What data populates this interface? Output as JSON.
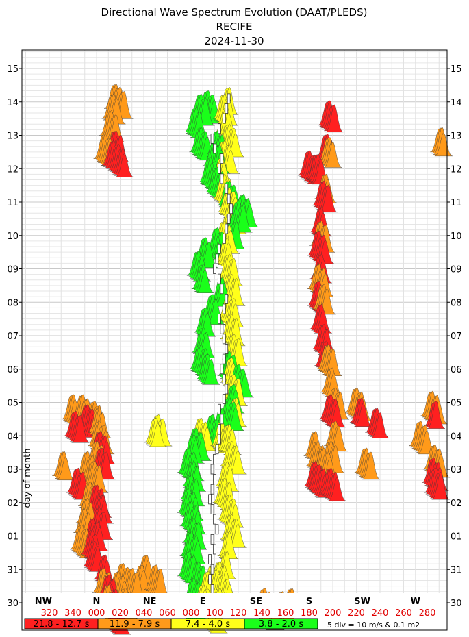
{
  "chart_data": {
    "type": "scatter",
    "title": "Directional Wave Spectrum Evolution (DAAT/PLEDS)",
    "subtitle_location": "RECIFE",
    "subtitle_date": "2024-11-30",
    "ylabel": "day of month",
    "y_ticks": [
      "30",
      "31",
      "01",
      "02",
      "03",
      "04",
      "05",
      "06",
      "07",
      "08",
      "09",
      "10",
      "11",
      "12",
      "13",
      "14",
      "15"
    ],
    "x_direction_ticks": [
      "320",
      "340",
      "000",
      "020",
      "040",
      "060",
      "080",
      "100",
      "120",
      "140",
      "160",
      "180",
      "200",
      "220",
      "240",
      "260",
      "280"
    ],
    "x_range_deg": [
      310,
      295
    ],
    "compass_labels": [
      {
        "label": "NW",
        "deg": 315
      },
      {
        "label": "N",
        "deg": 0
      },
      {
        "label": "NE",
        "deg": 45
      },
      {
        "label": "E",
        "deg": 90
      },
      {
        "label": "SE",
        "deg": 135
      },
      {
        "label": "S",
        "deg": 180
      },
      {
        "label": "SW",
        "deg": 225
      },
      {
        "label": "W",
        "deg": 270
      }
    ],
    "period_bands": [
      {
        "label": "21.8 - 12.7 s",
        "color": "#ff2020"
      },
      {
        "label": "11.9 - 7.9 s",
        "color": "#ff9a1a"
      },
      {
        "label": "7.4 - 4.0 s",
        "color": "#ffff1a"
      },
      {
        "label": "3.8 - 2.0 s",
        "color": "#1aff1a"
      }
    ],
    "scale_note": "5 div = 10 m/s & 0.1 m2",
    "series": [
      {
        "band": 0,
        "points": [
          [
            354,
            1.95
          ],
          [
            355,
            2.3
          ],
          [
            356,
            1.6
          ],
          [
            0,
            2.6
          ],
          [
            3,
            3.0
          ],
          [
            5,
            1.2
          ],
          [
            8,
            0.6
          ],
          [
            10,
            0.3
          ],
          [
            12,
            0.1
          ],
          [
            14,
            -0.2
          ],
          [
            358,
            3.3
          ],
          [
            2,
            4.4
          ],
          [
            1,
            4.9
          ],
          [
            350,
            5.7
          ],
          [
            340,
            5.5
          ],
          [
            342,
            3.8
          ],
          [
            12,
            13.6
          ],
          [
            14,
            13.9
          ],
          [
            16,
            13.5
          ],
          [
            195,
            14.8
          ],
          [
            193,
            13.8
          ],
          [
            190,
            12.4
          ],
          [
            188,
            11.6
          ],
          [
            186,
            10.9
          ],
          [
            188,
            10.2
          ],
          [
            186,
            9.4
          ],
          [
            188,
            8.7
          ],
          [
            190,
            8.1
          ],
          [
            192,
            7.6
          ],
          [
            178,
            13.3
          ],
          [
            185,
            13.2
          ],
          [
            183,
            4.0
          ],
          [
            186,
            3.9
          ],
          [
            196,
            3.8
          ],
          [
            196,
            6.0
          ],
          [
            222,
            5.9
          ],
          [
            235,
            5.6
          ],
          [
            285,
            5.8
          ],
          [
            283,
            4.1
          ],
          [
            285,
            3.8
          ]
        ]
      },
      {
        "band": 1,
        "points": [
          [
            345,
            2.1
          ],
          [
            348,
            2.6
          ],
          [
            350,
            2.9
          ],
          [
            352,
            3.4
          ],
          [
            356,
            4.0
          ],
          [
            358,
            4.6
          ],
          [
            0,
            5.2
          ],
          [
            356,
            5.8
          ],
          [
            338,
            6.0
          ],
          [
            346,
            6.0
          ],
          [
            350,
            4.3
          ],
          [
            330,
            4.3
          ],
          [
            0,
            5.6
          ],
          [
            4,
            0.8
          ],
          [
            8,
            0.3
          ],
          [
            12,
            -0.1
          ],
          [
            16,
            0.7
          ],
          [
            22,
            0.2
          ],
          [
            28,
            0.8
          ],
          [
            36,
            0.9
          ],
          [
            40,
            1.2
          ],
          [
            48,
            0.9
          ],
          [
            20,
            0.95
          ],
          [
            5,
            13.8
          ],
          [
            10,
            14.5
          ],
          [
            12,
            15.0
          ],
          [
            14,
            15.3
          ],
          [
            17,
            15.2
          ],
          [
            195,
            13.7
          ],
          [
            192,
            12.6
          ],
          [
            188,
            11.2
          ],
          [
            186,
            9.9
          ],
          [
            190,
            9.3
          ],
          [
            194,
            7.5
          ],
          [
            197,
            6.8
          ],
          [
            200,
            6.2
          ],
          [
            183,
            4.9
          ],
          [
            185,
            4.6
          ],
          [
            190,
            4.4
          ],
          [
            196,
            4.6
          ],
          [
            200,
            5.2
          ],
          [
            218,
            6.2
          ],
          [
            226,
            4.4
          ],
          [
            272,
            5.2
          ],
          [
            282,
            6.1
          ],
          [
            284,
            4.5
          ],
          [
            290,
            14.0
          ],
          [
            140,
            0.2
          ],
          [
            150,
            0.0
          ],
          [
            155,
            0.1
          ],
          [
            160,
            -0.1
          ],
          [
            163,
            0.2
          ],
          [
            145,
            -0.1
          ]
        ]
      },
      {
        "band": 2,
        "points": [
          [
            97,
            -0.2
          ],
          [
            102,
            0.2
          ],
          [
            105,
            0.6
          ],
          [
            102,
            1.0
          ],
          [
            108,
            1.3
          ],
          [
            110,
            1.9
          ],
          [
            112,
            2.4
          ],
          [
            110,
            3.0
          ],
          [
            106,
            3.5
          ],
          [
            108,
            4.0
          ],
          [
            112,
            4.6
          ],
          [
            110,
            5.1
          ],
          [
            88,
            0.3
          ],
          [
            92,
            0.7
          ],
          [
            96,
            0.9
          ],
          [
            86,
            5.3
          ],
          [
            96,
            5.4
          ],
          [
            104,
            5.2
          ],
          [
            48,
            5.3
          ],
          [
            50,
            5.4
          ],
          [
            116,
            5.9
          ],
          [
            114,
            6.6
          ],
          [
            112,
            7.1
          ],
          [
            114,
            7.8
          ],
          [
            112,
            8.4
          ],
          [
            110,
            9.0
          ],
          [
            112,
            9.6
          ],
          [
            110,
            10.2
          ],
          [
            108,
            10.7
          ],
          [
            106,
            11.2
          ],
          [
            112,
            11.8
          ],
          [
            110,
            12.2
          ],
          [
            106,
            12.6
          ],
          [
            104,
            13.1
          ],
          [
            106,
            13.6
          ],
          [
            110,
            14.1
          ],
          [
            108,
            14.6
          ],
          [
            106,
            15.0
          ],
          [
            110,
            15.2
          ]
        ]
      },
      {
        "band": 3,
        "points": [
          [
            82,
            0.0
          ],
          [
            80,
            0.5
          ],
          [
            84,
            1.0
          ],
          [
            76,
            1.3
          ],
          [
            78,
            1.9
          ],
          [
            80,
            2.3
          ],
          [
            78,
            2.8
          ],
          [
            76,
            3.2
          ],
          [
            78,
            3.6
          ],
          [
            80,
            4.0
          ],
          [
            76,
            4.4
          ],
          [
            80,
            4.8
          ],
          [
            82,
            5.0
          ],
          [
            96,
            5.4
          ],
          [
            104,
            5.6
          ],
          [
            110,
            5.9
          ],
          [
            114,
            6.3
          ],
          [
            118,
            6.9
          ],
          [
            110,
            7.3
          ],
          [
            92,
            7.2
          ],
          [
            86,
            7.5
          ],
          [
            88,
            8.0
          ],
          [
            90,
            8.6
          ],
          [
            96,
            9.0
          ],
          [
            104,
            9.5
          ],
          [
            88,
            9.9
          ],
          [
            84,
            10.3
          ],
          [
            90,
            10.7
          ],
          [
            100,
            11.0
          ],
          [
            112,
            11.3
          ],
          [
            118,
            11.8
          ],
          [
            122,
            12.0
          ],
          [
            110,
            12.4
          ],
          [
            100,
            12.8
          ],
          [
            94,
            13.1
          ],
          [
            98,
            13.6
          ],
          [
            100,
            13.9
          ],
          [
            86,
            14.0
          ],
          [
            82,
            14.6
          ],
          [
            86,
            15.0
          ],
          [
            92,
            15.1
          ]
        ]
      }
    ],
    "wind_bars": [
      [
        100,
        0.1
      ],
      [
        98,
        0.4
      ],
      [
        96,
        0.7
      ],
      [
        98,
        1.0
      ],
      [
        96,
        1.3
      ],
      [
        100,
        1.6
      ],
      [
        98,
        1.9
      ],
      [
        102,
        2.2
      ],
      [
        100,
        2.5
      ],
      [
        98,
        2.8
      ],
      [
        96,
        3.1
      ],
      [
        98,
        3.4
      ],
      [
        100,
        3.7
      ],
      [
        98,
        4.0
      ],
      [
        100,
        4.3
      ],
      [
        102,
        4.6
      ],
      [
        104,
        4.9
      ],
      [
        104,
        5.2
      ],
      [
        106,
        5.5
      ],
      [
        104,
        5.8
      ],
      [
        108,
        6.1
      ],
      [
        110,
        6.4
      ],
      [
        108,
        6.7
      ],
      [
        106,
        7.0
      ],
      [
        108,
        7.3
      ],
      [
        110,
        7.6
      ],
      [
        108,
        7.9
      ],
      [
        106,
        8.2
      ],
      [
        104,
        8.5
      ],
      [
        108,
        8.8
      ],
      [
        110,
        9.1
      ],
      [
        106,
        9.4
      ],
      [
        104,
        9.7
      ],
      [
        100,
        10.0
      ],
      [
        102,
        10.3
      ],
      [
        104,
        10.6
      ],
      [
        108,
        10.9
      ],
      [
        110,
        11.2
      ],
      [
        112,
        11.5
      ],
      [
        114,
        11.8
      ],
      [
        112,
        12.1
      ],
      [
        110,
        12.4
      ],
      [
        106,
        12.7
      ],
      [
        104,
        13.0
      ],
      [
        106,
        13.3
      ],
      [
        100,
        13.6
      ],
      [
        98,
        13.9
      ],
      [
        104,
        14.2
      ],
      [
        108,
        14.5
      ],
      [
        110,
        14.8
      ],
      [
        112,
        15.1
      ]
    ]
  }
}
